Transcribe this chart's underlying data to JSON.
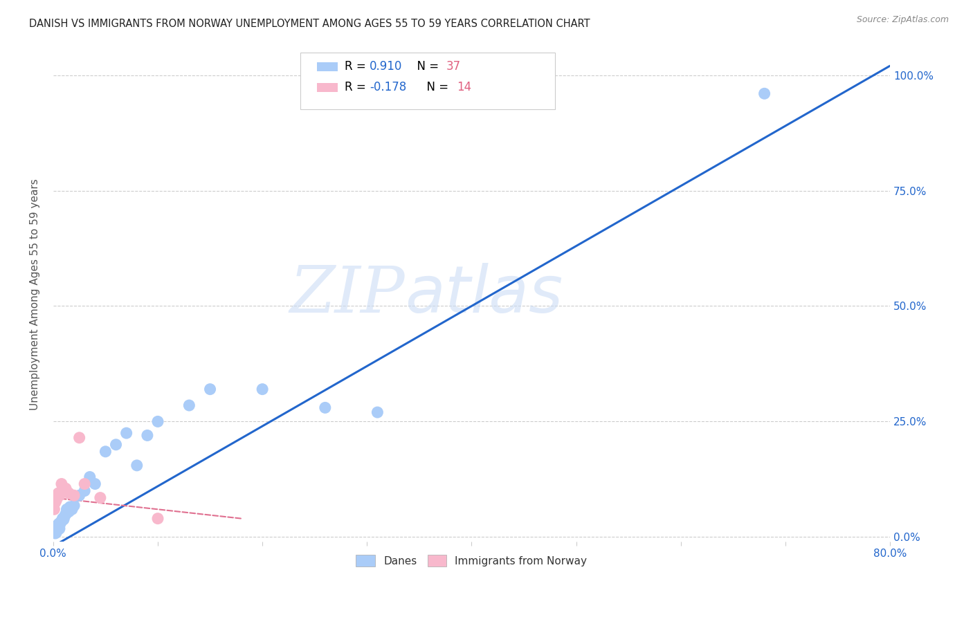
{
  "title": "DANISH VS IMMIGRANTS FROM NORWAY UNEMPLOYMENT AMONG AGES 55 TO 59 YEARS CORRELATION CHART",
  "source": "Source: ZipAtlas.com",
  "ylabel": "Unemployment Among Ages 55 to 59 years",
  "watermark_zip": "ZIP",
  "watermark_atlas": "atlas",
  "danes_R": 0.91,
  "danes_N": 37,
  "immigrants_R": -0.178,
  "immigrants_N": 14,
  "danes_color": "#aaccf8",
  "danes_line_color": "#2266cc",
  "immigrants_color": "#f8b8cc",
  "immigrants_line_color": "#e07090",
  "background_color": "#ffffff",
  "grid_color": "#cccccc",
  "title_color": "#222222",
  "legend_R_color": "#2266cc",
  "legend_N_color": "#e06080",
  "xlim": [
    0.0,
    0.8
  ],
  "ylim": [
    -0.01,
    1.06
  ],
  "xticks": [
    0.0,
    0.1,
    0.2,
    0.3,
    0.4,
    0.5,
    0.6,
    0.7,
    0.8
  ],
  "yticks": [
    0.0,
    0.25,
    0.5,
    0.75,
    1.0
  ],
  "danes_line_x0": 0.0,
  "danes_line_y0": -0.02,
  "danes_line_x1": 0.8,
  "danes_line_y1": 1.02,
  "immigrants_line_x0": 0.0,
  "immigrants_line_y0": 0.085,
  "immigrants_line_x1": 0.18,
  "immigrants_line_y1": 0.04,
  "danes_x": [
    0.002,
    0.003,
    0.003,
    0.004,
    0.004,
    0.005,
    0.005,
    0.006,
    0.006,
    0.007,
    0.008,
    0.009,
    0.01,
    0.011,
    0.012,
    0.013,
    0.013,
    0.015,
    0.016,
    0.018,
    0.02,
    0.025,
    0.03,
    0.035,
    0.04,
    0.05,
    0.06,
    0.07,
    0.08,
    0.09,
    0.1,
    0.13,
    0.15,
    0.2,
    0.26,
    0.31,
    0.68
  ],
  "danes_y": [
    0.008,
    0.01,
    0.015,
    0.02,
    0.025,
    0.022,
    0.028,
    0.018,
    0.03,
    0.03,
    0.035,
    0.04,
    0.038,
    0.045,
    0.05,
    0.052,
    0.06,
    0.055,
    0.065,
    0.06,
    0.068,
    0.09,
    0.1,
    0.13,
    0.115,
    0.185,
    0.2,
    0.225,
    0.155,
    0.22,
    0.25,
    0.285,
    0.32,
    0.32,
    0.28,
    0.27,
    0.96
  ],
  "immigrants_x": [
    0.001,
    0.002,
    0.003,
    0.005,
    0.006,
    0.008,
    0.01,
    0.012,
    0.015,
    0.02,
    0.025,
    0.03,
    0.045,
    0.1
  ],
  "immigrants_y": [
    0.06,
    0.075,
    0.08,
    0.095,
    0.09,
    0.115,
    0.1,
    0.105,
    0.095,
    0.09,
    0.215,
    0.115,
    0.085,
    0.04
  ]
}
